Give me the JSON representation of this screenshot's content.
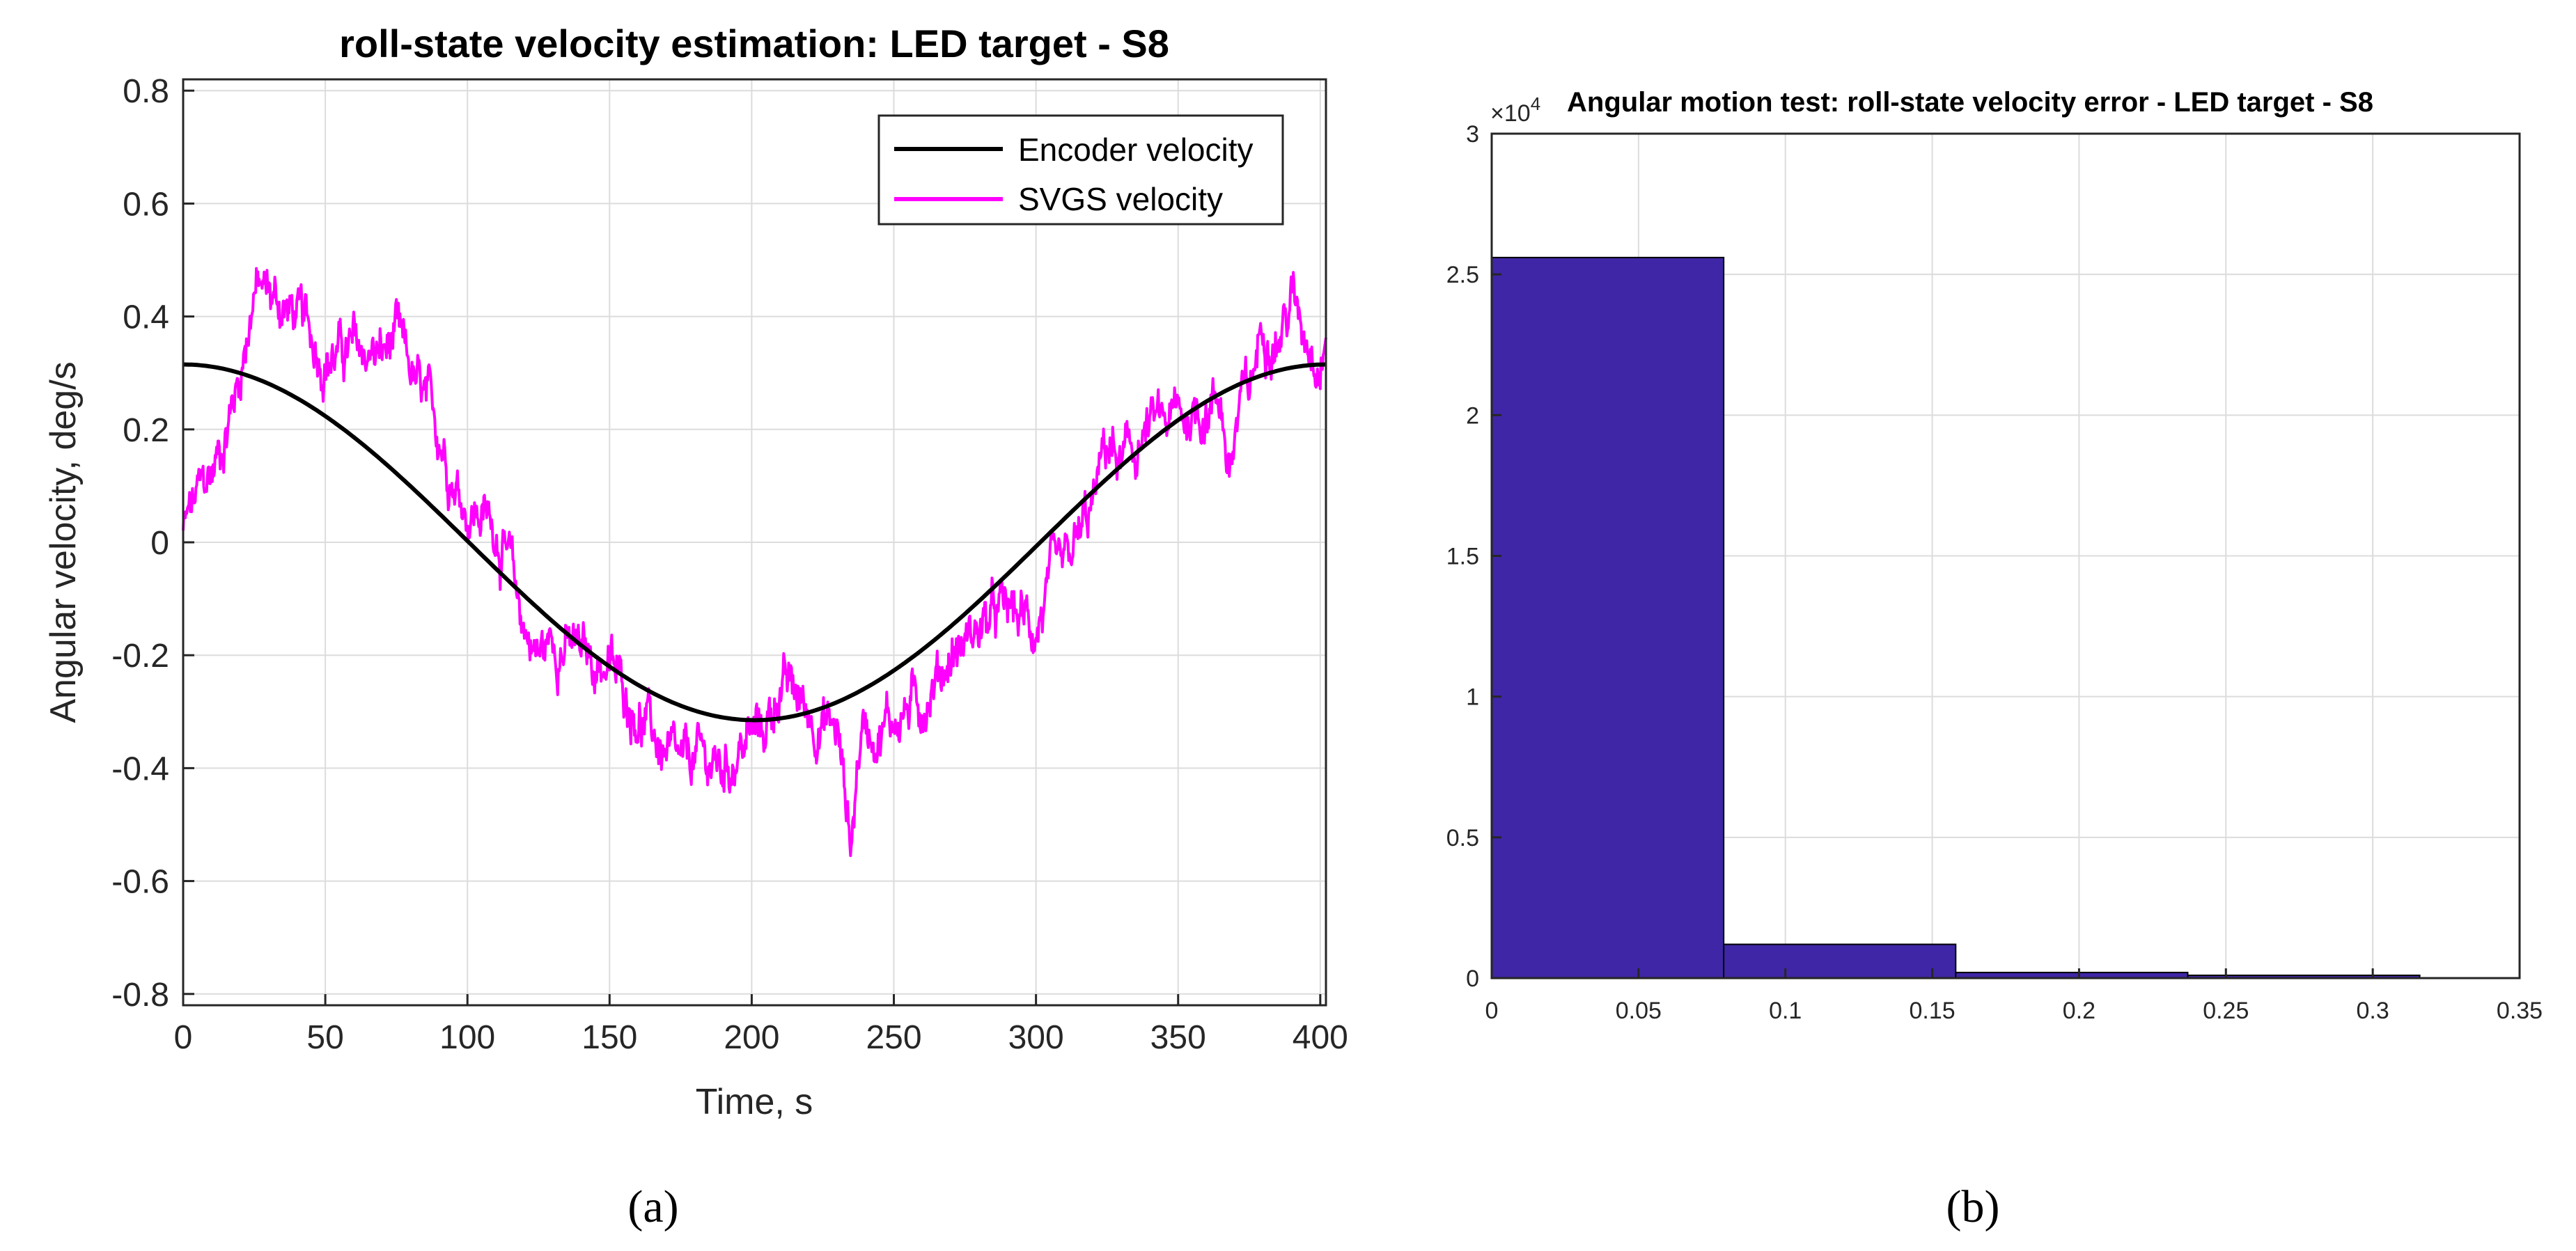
{
  "chart_data": [
    {
      "type": "line",
      "title": "roll-state velocity estimation: LED target - S8",
      "xlabel": "Time, s",
      "ylabel": "Angular velocity, deg/s",
      "xlim": [
        0,
        402
      ],
      "ylim": [
        -0.82,
        0.82
      ],
      "xticks": [
        0,
        50,
        100,
        150,
        200,
        250,
        300,
        350,
        400
      ],
      "xtick_labels": [
        "0",
        "50",
        "100",
        "150",
        "200",
        "250",
        "300",
        "350",
        "400"
      ],
      "yticks": [
        -0.8,
        -0.6,
        -0.4,
        -0.2,
        0,
        0.2,
        0.4,
        0.6,
        0.8
      ],
      "ytick_labels": [
        "-0.8",
        "-0.6",
        "-0.4",
        "-0.2",
        "0",
        "0.2",
        "0.4",
        "0.6",
        "0.8"
      ],
      "grid": true,
      "legend_position": "top-right",
      "panel_label": "a",
      "series": [
        {
          "name": "Encoder velocity",
          "color": "#000000",
          "kind": "cosine",
          "amplitude": 0.315,
          "period": 402
        },
        {
          "name": "SVGS velocity",
          "color": "#ff00ff",
          "kind": "noisy",
          "x": [
            0,
            5,
            10,
            15,
            20,
            25,
            30,
            40,
            50,
            60,
            70,
            75,
            80,
            85,
            90,
            95,
            100,
            105,
            110,
            115,
            120,
            125,
            130,
            140,
            150,
            160,
            170,
            175,
            180,
            190,
            200,
            205,
            210,
            215,
            220,
            225,
            230,
            233,
            235,
            238,
            240,
            245,
            250,
            260,
            270,
            280,
            290,
            300,
            305,
            310,
            315,
            320,
            325,
            330,
            340,
            350,
            360,
            365,
            368,
            372,
            375,
            380,
            385,
            390,
            395,
            400,
            402
          ],
          "y": [
            0.02,
            0.08,
            0.12,
            0.2,
            0.3,
            0.45,
            0.44,
            0.4,
            0.33,
            0.34,
            0.33,
            0.36,
            0.3,
            0.24,
            0.2,
            0.12,
            0.06,
            0.05,
            0.03,
            -0.05,
            -0.15,
            -0.2,
            -0.17,
            -0.2,
            -0.22,
            -0.3,
            -0.38,
            -0.41,
            -0.38,
            -0.4,
            -0.34,
            -0.33,
            -0.25,
            -0.27,
            -0.3,
            -0.32,
            -0.33,
            -0.45,
            -0.53,
            -0.35,
            -0.32,
            -0.33,
            -0.31,
            -0.28,
            -0.2,
            -0.15,
            -0.12,
            -0.15,
            -0.08,
            -0.06,
            0.0,
            0.06,
            0.18,
            0.13,
            0.2,
            0.22,
            0.24,
            0.26,
            0.12,
            0.25,
            0.26,
            0.4,
            0.36,
            0.43,
            0.38,
            0.33,
            0.38
          ]
        }
      ]
    },
    {
      "type": "bar",
      "subtype": "histogram",
      "title": "Angular motion test: roll-state velocity error - LED target - S8",
      "exponent_label": "×10",
      "exponent_power": "4",
      "xlim": [
        0,
        0.35
      ],
      "ylim": [
        0,
        3
      ],
      "xticks": [
        0,
        0.05,
        0.1,
        0.15,
        0.2,
        0.25,
        0.3,
        0.35
      ],
      "xtick_labels": [
        "0",
        "0.05",
        "0.1",
        "0.15",
        "0.2",
        "0.25",
        "0.3",
        "0.35"
      ],
      "yticks": [
        0,
        0.5,
        1,
        1.5,
        2,
        2.5,
        3
      ],
      "ytick_labels": [
        "0",
        "0.5",
        "1",
        "1.5",
        "2",
        "2.5",
        "3"
      ],
      "grid": true,
      "bar_color": "#3f26a6",
      "bins": [
        {
          "x0": 0.0,
          "x1": 0.079,
          "value": 2.56
        },
        {
          "x0": 0.079,
          "x1": 0.158,
          "value": 0.12
        },
        {
          "x0": 0.158,
          "x1": 0.237,
          "value": 0.02
        },
        {
          "x0": 0.237,
          "x1": 0.316,
          "value": 0.01
        }
      ],
      "panel_label": "b"
    }
  ],
  "captions": {
    "a": "(a)",
    "b": "(b)"
  }
}
